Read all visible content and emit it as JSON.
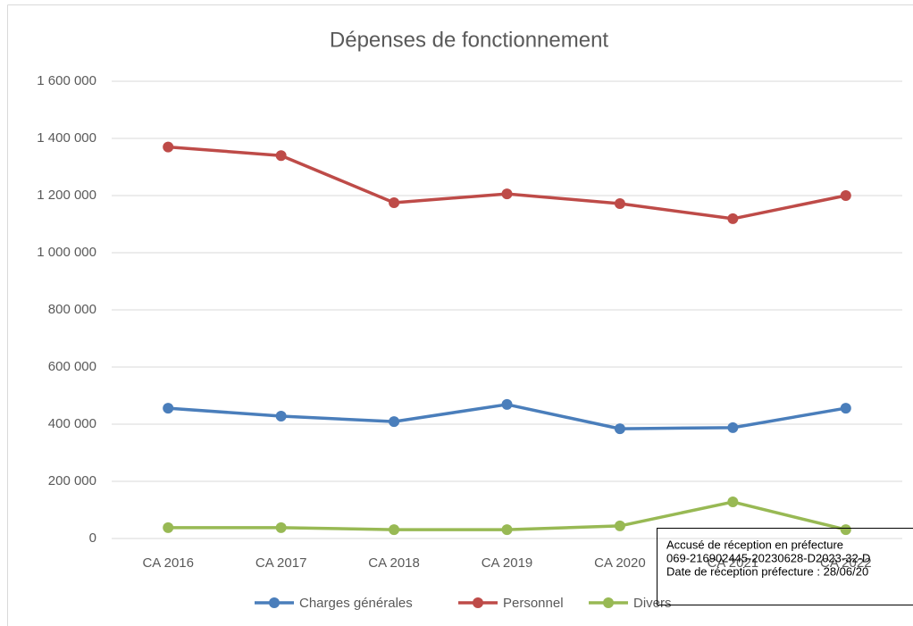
{
  "chart_data": {
    "type": "line",
    "title": "Dépenses de fonctionnement",
    "categories": [
      "CA 2016",
      "CA 2017",
      "CA 2018",
      "CA 2019",
      "CA 2020",
      "CA 2021",
      "CA 2022"
    ],
    "series": [
      {
        "name": "Charges générales",
        "color": "#4a7ebb",
        "values": [
          456000,
          428000,
          409000,
          469000,
          384000,
          388000,
          456000
        ]
      },
      {
        "name": "Personnel",
        "color": "#be4b48",
        "values": [
          1370000,
          1340000,
          1175000,
          1206000,
          1172000,
          1119000,
          1200000
        ]
      },
      {
        "name": "Divers",
        "color": "#98b954",
        "values": [
          38000,
          38000,
          31000,
          31000,
          44000,
          128000,
          31000
        ]
      }
    ],
    "ylim": [
      0,
      1600000
    ],
    "yticks": [
      0,
      {
        "value": 200000,
        "label": "200 000"
      },
      {
        "value": 400000,
        "label": "400 000"
      },
      {
        "value": 600000,
        "label": "600 000"
      },
      {
        "value": 800000,
        "label": "800 000"
      },
      {
        "value": 1000000,
        "label": "1 000 000"
      },
      {
        "value": 1200000,
        "label": "1 200 000"
      },
      {
        "value": 1400000,
        "label": "1 400 000"
      },
      {
        "value": 1600000,
        "label": "1 600 000"
      }
    ],
    "grid": true,
    "legend": "bottom",
    "annotations": [
      "Accusé de réception en préfecture",
      "069-216902445-20230628-D2023-32-D",
      "Date de réception préfecture : 28/06/20"
    ]
  }
}
